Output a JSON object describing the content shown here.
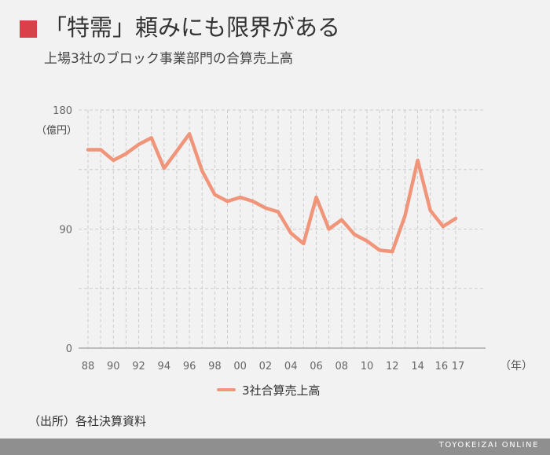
{
  "header": {
    "title": "「特需」頼みにも限界がある",
    "subtitle": "上場3社のブロック事業部門の合算売上高"
  },
  "source": "（出所）各社決算資料",
  "footer": "TOYOKEIZAI ONLINE",
  "colors": {
    "accent": "#d8404a",
    "line": "#f0957a",
    "grid": "#cccccc",
    "axis": "#aaaaaa",
    "footer_bar": "#8f8f8f"
  },
  "chart_data": {
    "type": "line",
    "title": "「特需」頼みにも限界がある",
    "subtitle": "上場3社のブロック事業部門の合算売上高",
    "ylabel": "（億円）",
    "xlabel": "（年）",
    "ylim": [
      0,
      180
    ],
    "yticks": [
      0,
      90,
      180
    ],
    "x_tick_labels": [
      "88",
      "90",
      "92",
      "94",
      "96",
      "98",
      "00",
      "02",
      "04",
      "06",
      "08",
      "10",
      "12",
      "14",
      "16",
      "17"
    ],
    "grid": true,
    "legend_position": "bottom",
    "categories": [
      "88",
      "89",
      "90",
      "91",
      "92",
      "93",
      "94",
      "95",
      "96",
      "97",
      "98",
      "99",
      "00",
      "01",
      "02",
      "03",
      "04",
      "05",
      "06",
      "07",
      "08",
      "09",
      "10",
      "11",
      "12",
      "13",
      "14",
      "15",
      "16",
      "17"
    ],
    "series": [
      {
        "name": "3社合算売上高",
        "values": [
          150,
          150,
          142,
          147,
          154,
          159,
          136,
          149,
          162,
          134,
          116,
          111,
          114,
          111,
          106,
          103,
          87,
          79,
          114,
          90,
          97,
          86,
          81,
          74,
          73,
          100,
          142,
          104,
          92,
          98
        ]
      }
    ]
  }
}
